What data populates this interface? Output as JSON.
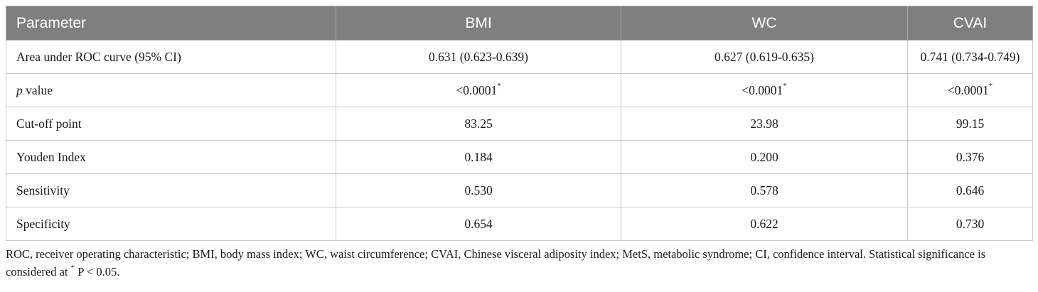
{
  "table": {
    "headers": [
      "Parameter",
      "BMI",
      "WC",
      "CVAI"
    ],
    "rows": [
      {
        "label": "Area under ROC curve (95% CI)",
        "label_italic_prefix": "",
        "values": [
          "0.631 (0.623-0.639)",
          "0.627 (0.619-0.635)",
          "0.741 (0.734-0.749)"
        ],
        "sup": ""
      },
      {
        "label": " value",
        "label_italic_prefix": "p",
        "values": [
          "<0.0001",
          "<0.0001",
          "<0.0001"
        ],
        "sup": "*"
      },
      {
        "label": "Cut-off point",
        "label_italic_prefix": "",
        "values": [
          "83.25",
          "23.98",
          "99.15"
        ],
        "sup": ""
      },
      {
        "label": "Youden Index",
        "label_italic_prefix": "",
        "values": [
          "0.184",
          "0.200",
          "0.376"
        ],
        "sup": ""
      },
      {
        "label": "Sensitivity",
        "label_italic_prefix": "",
        "values": [
          "0.530",
          "0.578",
          "0.646"
        ],
        "sup": ""
      },
      {
        "label": "Specificity",
        "label_italic_prefix": "",
        "values": [
          "0.654",
          "0.622",
          "0.730"
        ],
        "sup": ""
      }
    ]
  },
  "footnote": {
    "text": "ROC, receiver operating characteristic; BMI, body mass index; WC, waist circumference; CVAI, Chinese visceral adiposity index; MetS, metabolic syndrome; CI, confidence interval. Statistical significance is considered at",
    "sup": "*",
    "tail": " P < 0.05."
  }
}
